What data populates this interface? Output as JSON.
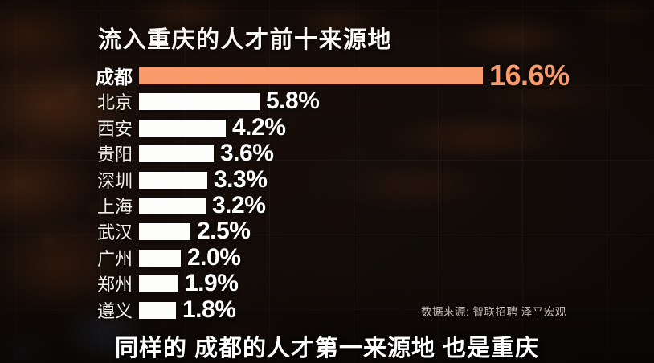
{
  "chart": {
    "title": "流入重庆的人才前十来源地"
  },
  "chart_data": {
    "type": "bar",
    "orientation": "horizontal",
    "title": "流入重庆的人才前十来源地",
    "categories": [
      "成都",
      "北京",
      "西安",
      "贵阳",
      "深圳",
      "上海",
      "武汉",
      "广州",
      "郑州",
      "遵义"
    ],
    "values": [
      16.6,
      5.8,
      4.2,
      3.6,
      3.3,
      3.2,
      2.5,
      2.0,
      1.9,
      1.8
    ],
    "value_labels": [
      "16.6%",
      "5.8%",
      "4.2%",
      "3.6%",
      "3.3%",
      "3.2%",
      "2.5%",
      "2.0%",
      "1.9%",
      "1.8%"
    ],
    "xlim": [
      0,
      16.6
    ],
    "grid": "off",
    "legend": "none",
    "highlight_category": "成都",
    "highlight_color": "#f99a6b",
    "bar_color": "#fdfdfb"
  },
  "source": {
    "text": "数据来源: 智联招聘 泽平宏观"
  },
  "caption": {
    "text": "同样的 成都的人才第一来源地 也是重庆"
  }
}
